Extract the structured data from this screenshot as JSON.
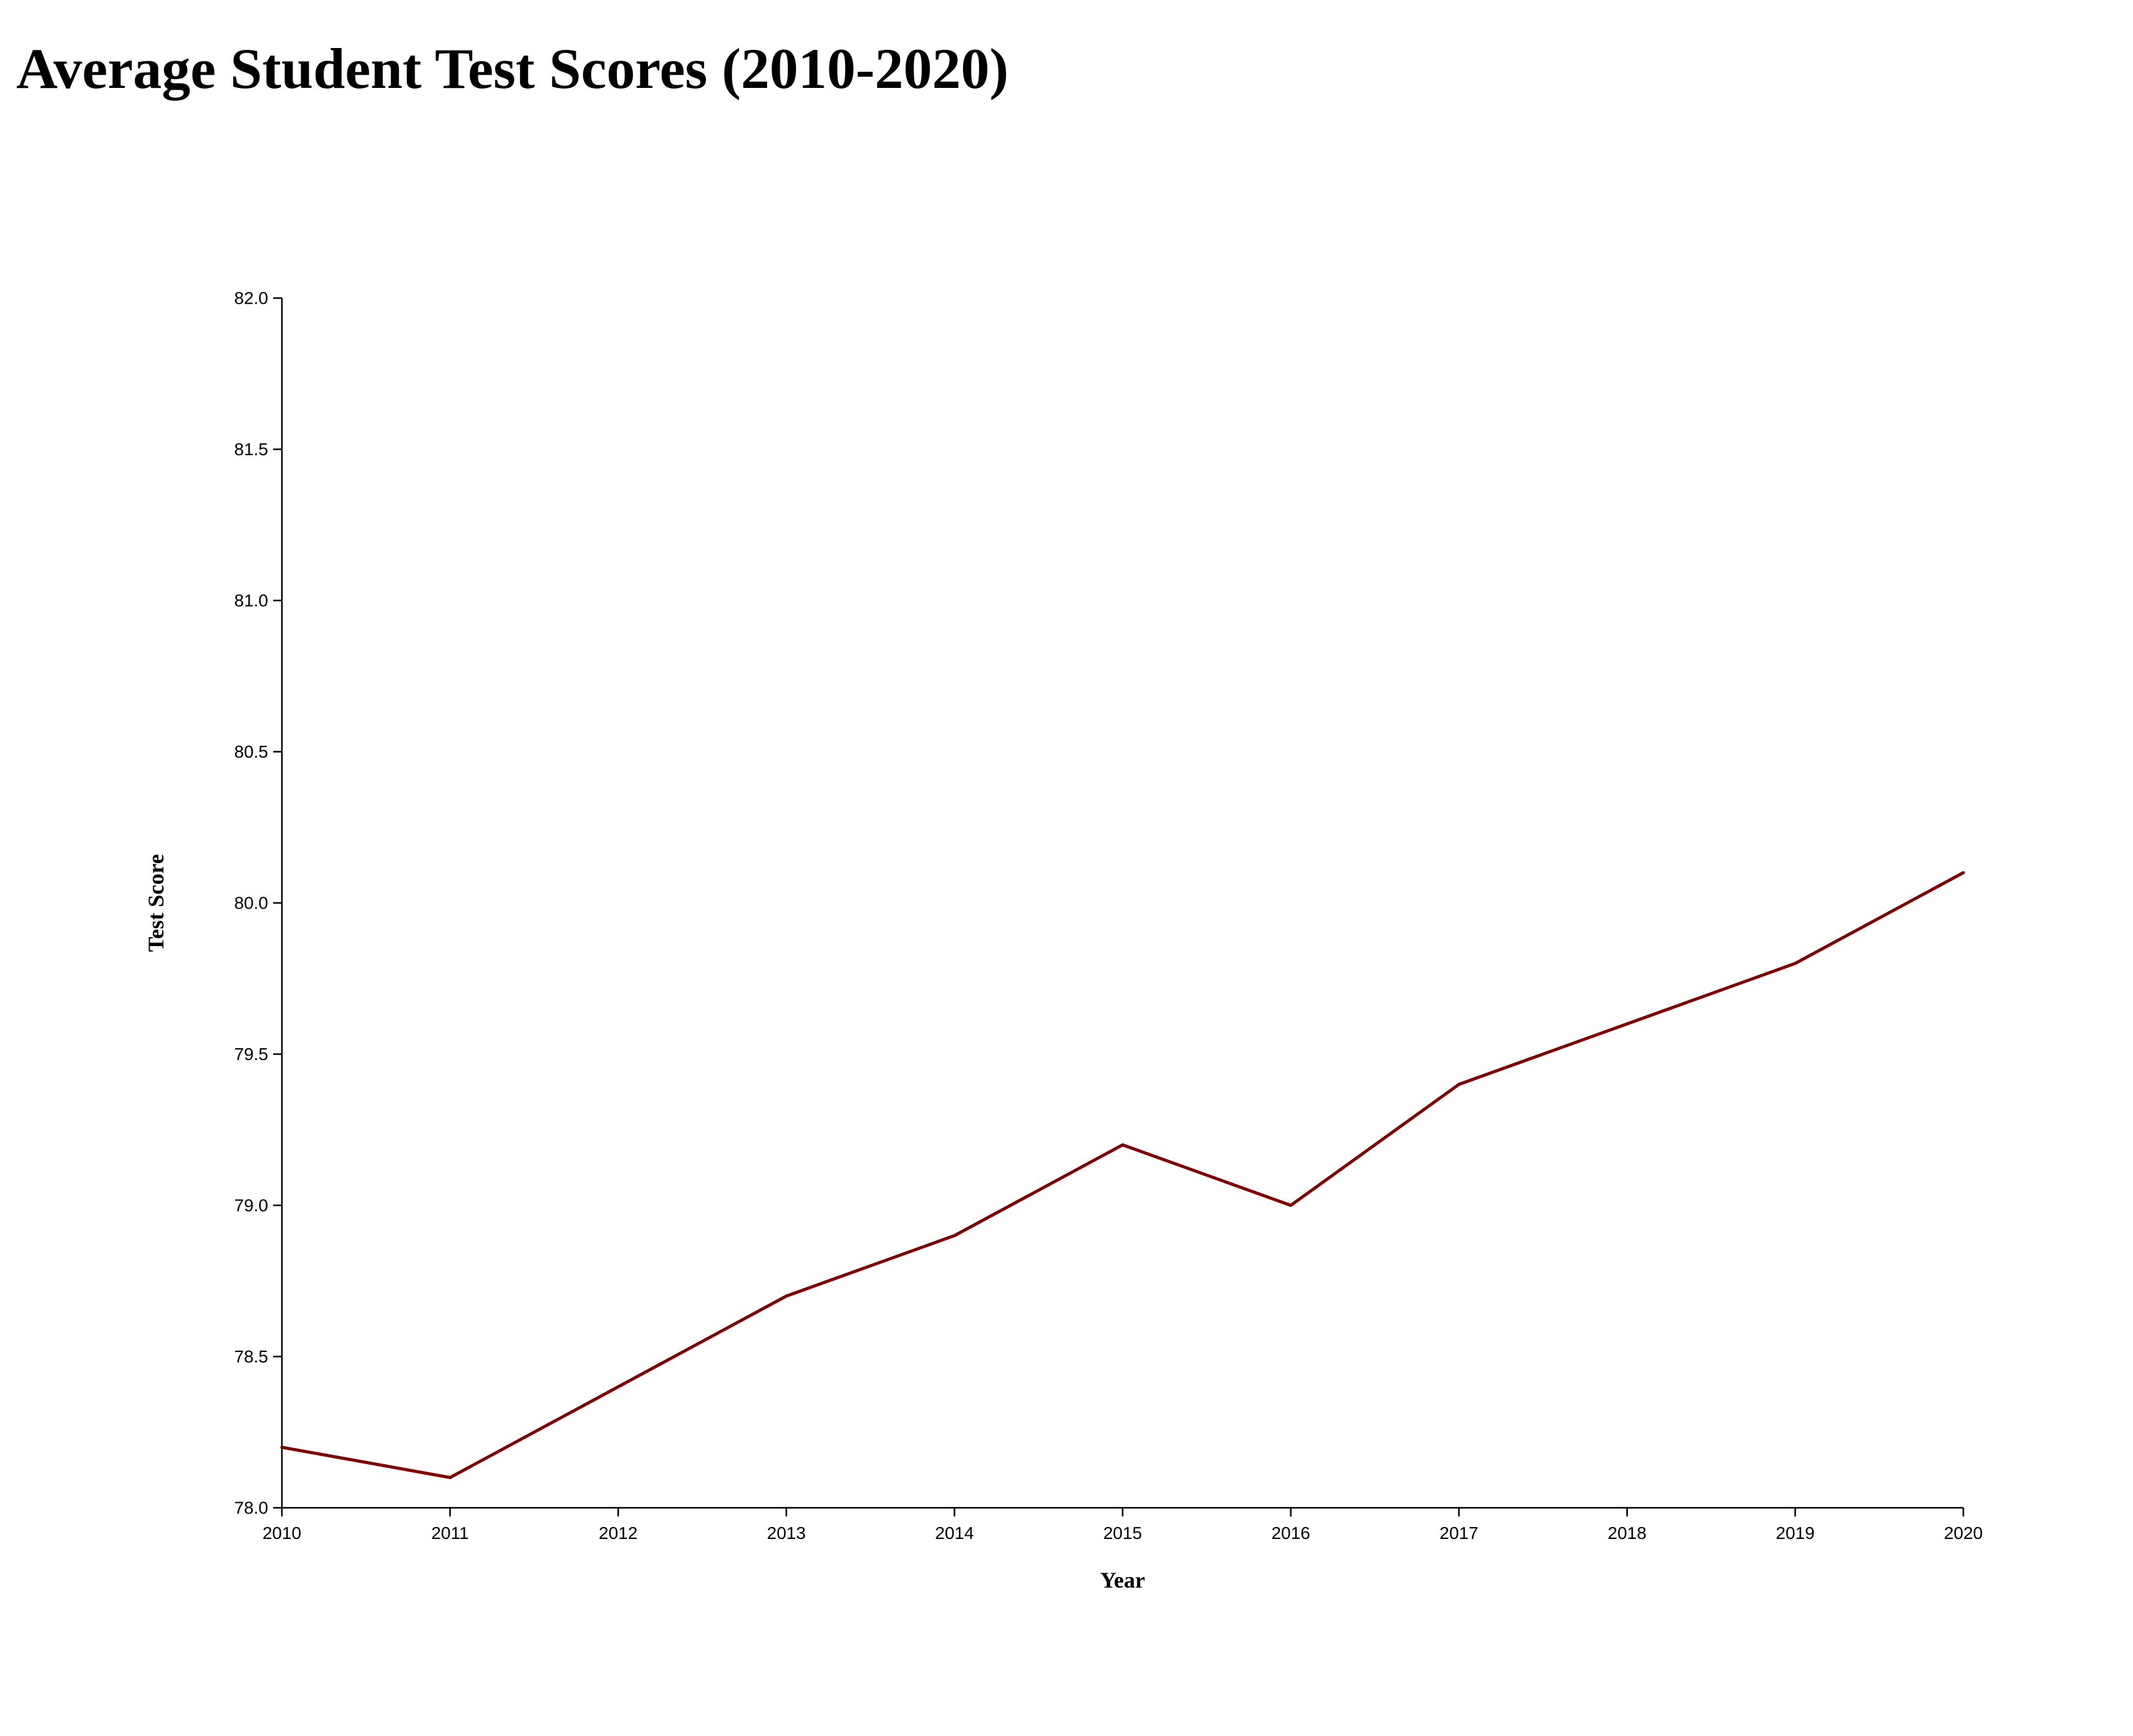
{
  "chart_data": {
    "type": "line",
    "title": "Average Student Test Scores (2010-2020)",
    "xlabel": "Year",
    "ylabel": "Test Score",
    "x": [
      2010,
      2011,
      2012,
      2013,
      2014,
      2015,
      2016,
      2017,
      2018,
      2019,
      2020
    ],
    "x_tick_labels": [
      "2010",
      "2011",
      "2012",
      "2013",
      "2014",
      "2015",
      "2016",
      "2017",
      "2018",
      "2019",
      "2020"
    ],
    "y_tick_labels": [
      "78.0",
      "78.5",
      "79.0",
      "79.5",
      "80.0",
      "80.5",
      "81.0",
      "81.5",
      "82.0"
    ],
    "y_ticks": [
      78.0,
      78.5,
      79.0,
      79.5,
      80.0,
      80.5,
      81.0,
      81.5,
      82.0
    ],
    "xlim": [
      2010,
      2020
    ],
    "ylim": [
      78.0,
      82.0
    ],
    "grid": false,
    "series": [
      {
        "values": [
          78.2,
          78.1,
          78.4,
          78.7,
          78.9,
          79.2,
          79.0,
          79.4,
          79.6,
          79.8,
          80.1
        ],
        "color": "#800000"
      }
    ]
  }
}
